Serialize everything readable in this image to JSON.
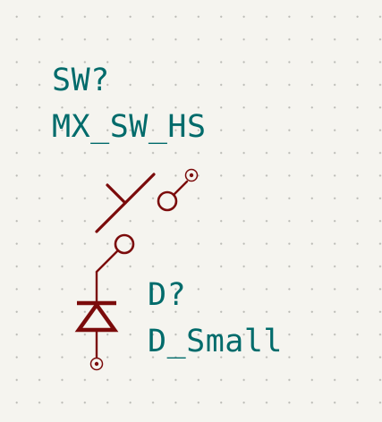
{
  "canvas": {
    "background_color": "#f5f4ef",
    "grid_dot_color": "#b9b9b4"
  },
  "colors": {
    "symbol": "#7b0b0b",
    "text": "#006b6b"
  },
  "components": {
    "switch": {
      "reference": "SW?",
      "value": "MX_SW_HS"
    },
    "diode": {
      "reference": "D?",
      "value": "D_Small"
    }
  }
}
